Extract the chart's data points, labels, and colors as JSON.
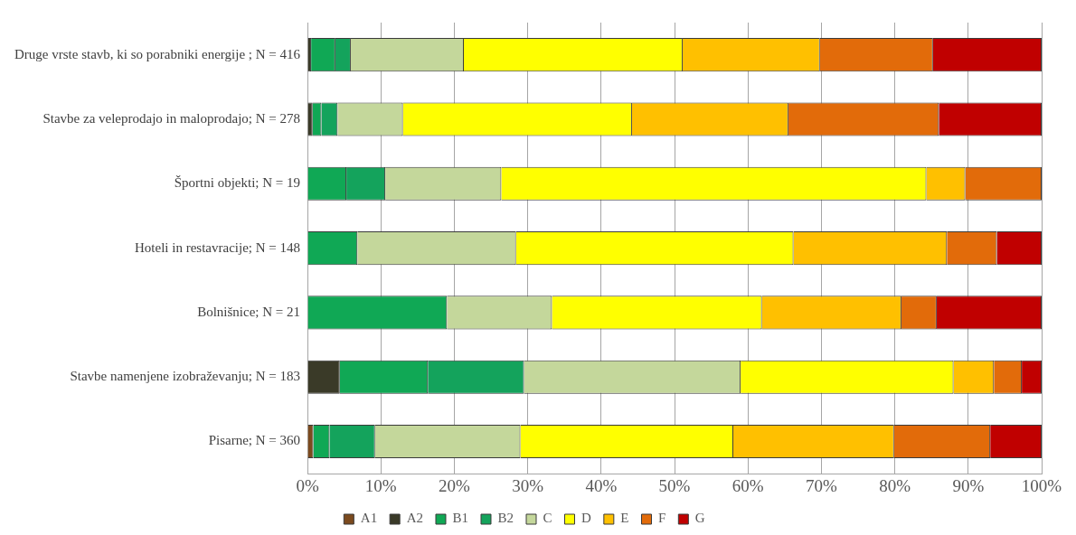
{
  "chart_data": {
    "type": "bar",
    "orientation": "horizontal",
    "stacked": true,
    "categories": [
      "Druge vrste stavb, ki so porabniki energije ; N = 416",
      "Stavbe za veleprodajo in maloprodajo; N = 278",
      "Športni objekti; N = 19",
      "Hoteli in restavracije; N = 148",
      "Bolnišnice; N = 21",
      "Stavbe namenjene izobraževanju; N = 183",
      "Pisarne; N = 360"
    ],
    "series": [
      {
        "name": "A1",
        "color": "#7b4a1e",
        "values": [
          0,
          0,
          0,
          0,
          0,
          0,
          0.8
        ]
      },
      {
        "name": "A2",
        "color": "#3a3a28",
        "values": [
          0.5,
          0.7,
          0,
          0,
          0,
          4.4,
          0
        ]
      },
      {
        "name": "B1",
        "color": "#10a855",
        "values": [
          3.3,
          1.2,
          5.3,
          6.8,
          19.0,
          12.0,
          2.2
        ]
      },
      {
        "name": "B2",
        "color": "#14a35c",
        "values": [
          2.1,
          2.2,
          5.3,
          0,
          0,
          13.1,
          6.2
        ]
      },
      {
        "name": "C",
        "color": "#c4d79b",
        "values": [
          15.4,
          8.9,
          15.8,
          21.6,
          14.3,
          29.5,
          19.8
        ]
      },
      {
        "name": "D",
        "color": "#ffff00",
        "values": [
          29.8,
          31.2,
          57.9,
          37.8,
          28.6,
          29.0,
          29.0
        ]
      },
      {
        "name": "E",
        "color": "#ffc000",
        "values": [
          18.7,
          21.3,
          5.3,
          20.9,
          19.0,
          5.5,
          21.9
        ]
      },
      {
        "name": "F",
        "color": "#e26b0a",
        "values": [
          15.4,
          20.5,
          10.4,
          6.8,
          4.8,
          3.8,
          13.1
        ]
      },
      {
        "name": "G",
        "color": "#c00000",
        "values": [
          14.8,
          14.0,
          0,
          6.1,
          14.3,
          2.7,
          7.0
        ]
      }
    ],
    "xlim": [
      0,
      100
    ],
    "xticks": [
      {
        "value": 0,
        "label": "0%"
      },
      {
        "value": 10,
        "label": "10%"
      },
      {
        "value": 20,
        "label": "20%"
      },
      {
        "value": 30,
        "label": "30%"
      },
      {
        "value": 40,
        "label": "40%"
      },
      {
        "value": 50,
        "label": "50%"
      },
      {
        "value": 60,
        "label": "60%"
      },
      {
        "value": 70,
        "label": "70%"
      },
      {
        "value": 80,
        "label": "80%"
      },
      {
        "value": 90,
        "label": "90%"
      },
      {
        "value": 100,
        "label": "100%"
      }
    ],
    "grid": "x",
    "legend": "bottom"
  }
}
